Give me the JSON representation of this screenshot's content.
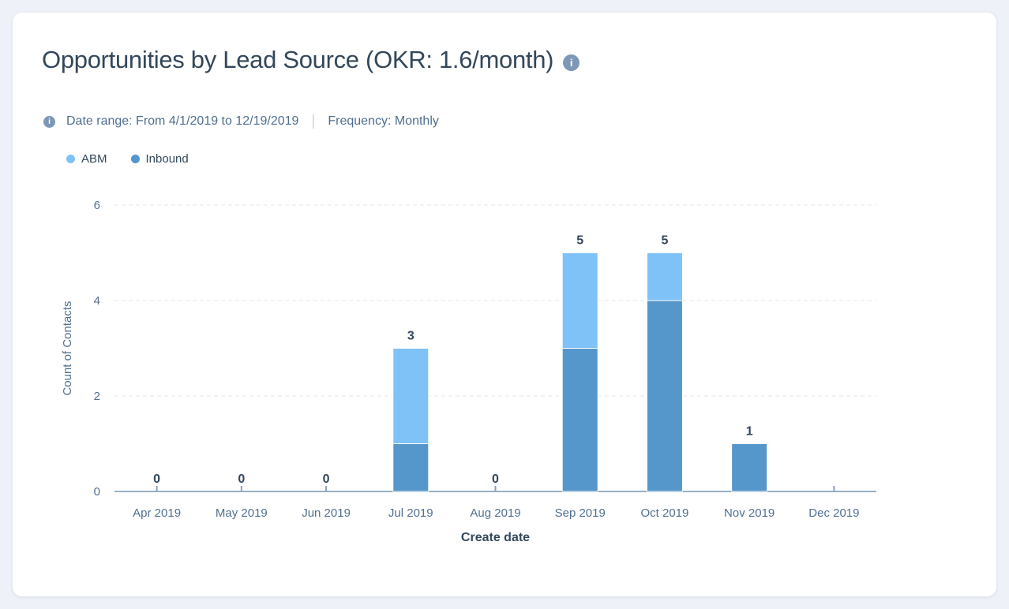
{
  "card": {
    "title": "Opportunities by Lead Source (OKR: 1.6/month)",
    "subtitle": {
      "date_range": "Date range: From 4/1/2019 to 12/19/2019",
      "divider": "|",
      "frequency": "Frequency: Monthly"
    }
  },
  "icons": {
    "info_glyph": "i"
  },
  "chart_data": {
    "type": "bar",
    "stacked": true,
    "title": "Opportunities by Lead Source (OKR: 1.6/month)",
    "categories": [
      "Apr 2019",
      "May 2019",
      "Jun 2019",
      "Jul 2019",
      "Aug 2019",
      "Sep 2019",
      "Oct 2019",
      "Nov 2019",
      "Dec 2019"
    ],
    "series": [
      {
        "name": "ABM",
        "color": "#7fc2f8",
        "values": [
          0,
          0,
          0,
          2,
          0,
          2,
          1,
          0,
          0
        ]
      },
      {
        "name": "Inbound",
        "color": "#5596cb",
        "values": [
          0,
          0,
          0,
          1,
          0,
          3,
          4,
          1,
          0
        ]
      }
    ],
    "stack_totals": [
      0,
      0,
      0,
      3,
      0,
      5,
      5,
      1,
      0
    ],
    "total_labels": [
      "0",
      "0",
      "0",
      "3",
      "0",
      "5",
      "5",
      "1",
      ""
    ],
    "xlabel": "Create date",
    "ylabel": "Count of Contacts",
    "yticks": [
      0,
      2,
      4,
      6
    ],
    "ylim": [
      0,
      6
    ],
    "grid": "horizontal-dashed",
    "legend_position": "top-left"
  },
  "colors": {
    "page_background": "#eef2f8",
    "card_background": "#ffffff",
    "title_text": "#33475b",
    "subtitle_text": "#506e91",
    "axis_text": "#516f90",
    "value_label_text": "#33475b",
    "axis_line": "#99afc6",
    "gridline": "#e3e8ef",
    "info_icon": "#7d98b6",
    "divider": "#cbd6e2",
    "zero_tick": "#8aa2bd",
    "abm": "#7fc2f8",
    "inbound": "#5596cb"
  }
}
